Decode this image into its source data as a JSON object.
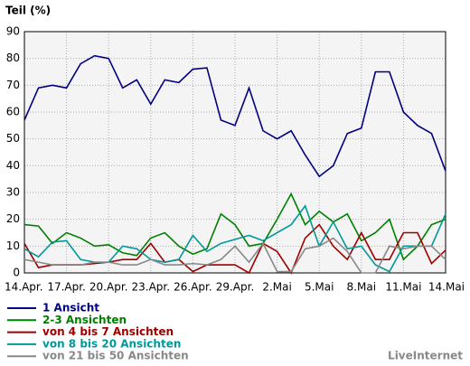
{
  "chart_data": {
    "type": "line",
    "title": "Teil (%)",
    "footer": "LiveInternet",
    "categories": [
      "14.Apr.",
      null,
      null,
      "17.Apr.",
      null,
      null,
      "20.Apr.",
      null,
      null,
      "23.Apr.",
      null,
      null,
      "26.Apr.",
      null,
      null,
      "29.Apr.",
      null,
      null,
      "2.Mai",
      null,
      null,
      "5.Mai",
      null,
      null,
      "8.Mai",
      null,
      null,
      "11.Mai",
      null,
      null,
      "14.Mai"
    ],
    "ylim": [
      0,
      90
    ],
    "yticks": [
      0,
      10,
      20,
      30,
      40,
      50,
      60,
      70,
      80,
      90
    ],
    "grid": true,
    "series": [
      {
        "name": "1 Ansicht",
        "color": "#000080",
        "values": [
          57,
          69,
          70,
          69,
          78,
          81,
          80,
          69,
          72,
          63,
          72,
          71,
          76,
          76.5,
          57,
          55,
          69,
          53,
          50,
          53,
          44,
          36,
          40,
          52,
          54,
          75,
          75,
          60,
          55,
          52,
          38
        ]
      },
      {
        "name": "2-3 Ansichten",
        "color": "#008000",
        "values": [
          18,
          17.5,
          11,
          15,
          13,
          10,
          10.5,
          7.5,
          6.5,
          13,
          15,
          10,
          7,
          9,
          22,
          18,
          10,
          11,
          20,
          29.5,
          18,
          23,
          19,
          22,
          12,
          15,
          20,
          5,
          10,
          18,
          20
        ]
      },
      {
        "name": "von 4 bis 7 Ansichten",
        "color": "#a00000",
        "values": [
          11,
          2,
          3,
          3,
          3,
          3.5,
          4,
          5,
          5,
          11,
          4,
          5,
          0.5,
          3,
          3,
          3,
          0,
          11,
          8,
          0,
          13,
          18,
          10,
          5,
          15,
          5,
          5,
          15,
          15,
          3.5,
          8.5
        ]
      },
      {
        "name": "von 8 bis 20 Ansichten",
        "color": "#009999",
        "values": [
          9,
          6,
          11.5,
          12,
          5,
          4,
          4,
          10,
          9,
          5,
          4,
          5,
          14,
          8,
          11,
          12.5,
          14,
          12,
          15,
          18,
          25,
          10,
          19,
          9,
          10,
          3,
          0.5,
          10,
          10,
          10,
          22
        ]
      },
      {
        "name": "von 21 bis 50 Ansichten",
        "color": "#888888",
        "values": [
          5,
          4,
          3,
          3,
          3,
          4,
          4,
          3,
          3,
          5,
          3,
          3,
          3.5,
          3,
          5,
          10,
          4,
          11,
          0.5,
          0.5,
          9,
          10,
          13,
          8,
          0,
          0,
          10,
          9,
          10,
          10,
          5
        ]
      }
    ]
  }
}
